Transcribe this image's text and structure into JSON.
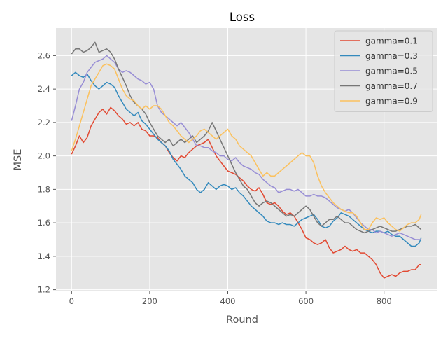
{
  "chart_data": {
    "type": "line",
    "title": "Loss",
    "xlabel": "Round",
    "ylabel": "MSE",
    "xlim": [
      -40,
      935
    ],
    "ylim": [
      1.19,
      2.765
    ],
    "xticks": [
      0,
      200,
      400,
      600,
      800
    ],
    "xtick_labels": [
      "0",
      "200",
      "400",
      "600",
      "800"
    ],
    "yticks": [
      1.2,
      1.4,
      1.6,
      1.8,
      2.0,
      2.2,
      2.4,
      2.6
    ],
    "ytick_labels": [
      "1.2",
      "1.4",
      "1.6",
      "1.8",
      "2.0",
      "2.2",
      "2.4",
      "2.6"
    ],
    "grid": true,
    "legend_position": "top-right",
    "style": "ggplot",
    "series": [
      {
        "name": "gamma=0.1",
        "color": "#E24A33",
        "x": [
          0,
          10,
          20,
          30,
          40,
          50,
          60,
          70,
          80,
          90,
          100,
          110,
          120,
          130,
          140,
          150,
          160,
          170,
          180,
          190,
          200,
          210,
          220,
          230,
          240,
          250,
          260,
          270,
          280,
          290,
          300,
          310,
          320,
          330,
          340,
          350,
          360,
          370,
          380,
          390,
          400,
          410,
          420,
          430,
          440,
          450,
          460,
          470,
          480,
          490,
          500,
          510,
          520,
          530,
          540,
          550,
          560,
          570,
          580,
          590,
          600,
          610,
          620,
          630,
          640,
          650,
          660,
          670,
          680,
          690,
          700,
          710,
          720,
          730,
          740,
          750,
          760,
          770,
          780,
          790,
          800,
          810,
          820,
          830,
          840,
          850,
          860,
          870,
          880,
          890,
          895
        ],
        "y": [
          2.01,
          2.06,
          2.12,
          2.08,
          2.11,
          2.18,
          2.22,
          2.26,
          2.28,
          2.25,
          2.29,
          2.27,
          2.24,
          2.22,
          2.19,
          2.2,
          2.18,
          2.2,
          2.16,
          2.15,
          2.12,
          2.12,
          2.11,
          2.08,
          2.06,
          2.02,
          1.99,
          1.97,
          2.0,
          1.99,
          2.02,
          2.04,
          2.06,
          2.07,
          2.08,
          2.1,
          2.05,
          2.0,
          1.97,
          1.94,
          1.91,
          1.9,
          1.89,
          1.87,
          1.85,
          1.82,
          1.8,
          1.79,
          1.81,
          1.77,
          1.72,
          1.71,
          1.72,
          1.7,
          1.67,
          1.65,
          1.66,
          1.64,
          1.6,
          1.56,
          1.51,
          1.5,
          1.48,
          1.47,
          1.48,
          1.5,
          1.45,
          1.42,
          1.43,
          1.44,
          1.46,
          1.44,
          1.43,
          1.44,
          1.42,
          1.42,
          1.4,
          1.38,
          1.35,
          1.3,
          1.27,
          1.28,
          1.29,
          1.28,
          1.3,
          1.31,
          1.31,
          1.32,
          1.32,
          1.35,
          1.35
        ]
      },
      {
        "name": "gamma=0.3",
        "color": "#348ABD",
        "x": [
          0,
          10,
          20,
          30,
          40,
          50,
          60,
          70,
          80,
          90,
          100,
          110,
          120,
          130,
          140,
          150,
          160,
          170,
          180,
          190,
          200,
          210,
          220,
          230,
          240,
          250,
          260,
          270,
          280,
          290,
          300,
          310,
          320,
          330,
          340,
          350,
          360,
          370,
          380,
          390,
          400,
          410,
          420,
          430,
          440,
          450,
          460,
          470,
          480,
          490,
          500,
          510,
          520,
          530,
          540,
          550,
          560,
          570,
          580,
          590,
          600,
          610,
          620,
          630,
          640,
          650,
          660,
          670,
          680,
          690,
          700,
          710,
          720,
          730,
          740,
          750,
          760,
          770,
          780,
          790,
          800,
          810,
          820,
          830,
          840,
          850,
          860,
          870,
          880,
          890,
          895
        ],
        "y": [
          2.48,
          2.5,
          2.48,
          2.47,
          2.49,
          2.45,
          2.42,
          2.4,
          2.42,
          2.44,
          2.43,
          2.41,
          2.36,
          2.32,
          2.28,
          2.26,
          2.24,
          2.26,
          2.21,
          2.19,
          2.16,
          2.13,
          2.1,
          2.08,
          2.06,
          2.03,
          1.98,
          1.95,
          1.92,
          1.88,
          1.86,
          1.84,
          1.8,
          1.78,
          1.8,
          1.84,
          1.82,
          1.8,
          1.82,
          1.83,
          1.82,
          1.8,
          1.81,
          1.78,
          1.76,
          1.73,
          1.7,
          1.68,
          1.66,
          1.64,
          1.61,
          1.6,
          1.6,
          1.59,
          1.6,
          1.59,
          1.59,
          1.58,
          1.6,
          1.62,
          1.63,
          1.64,
          1.65,
          1.62,
          1.58,
          1.57,
          1.58,
          1.61,
          1.63,
          1.66,
          1.65,
          1.64,
          1.62,
          1.6,
          1.58,
          1.56,
          1.55,
          1.54,
          1.55,
          1.55,
          1.54,
          1.55,
          1.53,
          1.52,
          1.52,
          1.5,
          1.48,
          1.46,
          1.46,
          1.48,
          1.51
        ]
      },
      {
        "name": "gamma=0.5",
        "color": "#988ED5",
        "x": [
          0,
          10,
          20,
          30,
          40,
          50,
          60,
          70,
          80,
          90,
          100,
          110,
          120,
          130,
          140,
          150,
          160,
          170,
          180,
          190,
          200,
          210,
          220,
          230,
          240,
          250,
          260,
          270,
          280,
          290,
          300,
          310,
          320,
          330,
          340,
          350,
          360,
          370,
          380,
          390,
          400,
          410,
          420,
          430,
          440,
          450,
          460,
          470,
          480,
          490,
          500,
          510,
          520,
          530,
          540,
          550,
          560,
          570,
          580,
          590,
          600,
          610,
          620,
          630,
          640,
          650,
          660,
          670,
          680,
          690,
          700,
          710,
          720,
          730,
          740,
          750,
          760,
          770,
          780,
          790,
          800,
          810,
          820,
          830,
          840,
          850,
          860,
          870,
          880,
          890,
          895
        ],
        "y": [
          2.21,
          2.3,
          2.4,
          2.44,
          2.5,
          2.53,
          2.56,
          2.57,
          2.58,
          2.6,
          2.58,
          2.56,
          2.52,
          2.5,
          2.51,
          2.5,
          2.48,
          2.46,
          2.45,
          2.43,
          2.44,
          2.4,
          2.3,
          2.26,
          2.24,
          2.22,
          2.2,
          2.18,
          2.2,
          2.17,
          2.14,
          2.1,
          2.06,
          2.06,
          2.05,
          2.05,
          2.03,
          2.02,
          2.0,
          2.0,
          1.98,
          1.97,
          1.99,
          1.96,
          1.94,
          1.93,
          1.92,
          1.9,
          1.89,
          1.86,
          1.84,
          1.82,
          1.81,
          1.78,
          1.79,
          1.8,
          1.8,
          1.79,
          1.8,
          1.78,
          1.76,
          1.76,
          1.77,
          1.76,
          1.76,
          1.75,
          1.73,
          1.71,
          1.69,
          1.68,
          1.67,
          1.68,
          1.66,
          1.63,
          1.6,
          1.58,
          1.56,
          1.56,
          1.54,
          1.55,
          1.54,
          1.53,
          1.52,
          1.53,
          1.54,
          1.53,
          1.52,
          1.51,
          1.5,
          1.5,
          1.5
        ]
      },
      {
        "name": "gamma=0.7",
        "color": "#777777",
        "x": [
          0,
          10,
          20,
          30,
          40,
          50,
          60,
          70,
          80,
          90,
          100,
          110,
          120,
          130,
          140,
          150,
          160,
          170,
          180,
          190,
          200,
          210,
          220,
          230,
          240,
          250,
          260,
          270,
          280,
          290,
          300,
          310,
          320,
          330,
          340,
          350,
          360,
          370,
          380,
          390,
          400,
          410,
          420,
          430,
          440,
          450,
          460,
          470,
          480,
          490,
          500,
          510,
          520,
          530,
          540,
          550,
          560,
          570,
          580,
          590,
          600,
          610,
          620,
          630,
          640,
          650,
          660,
          670,
          680,
          690,
          700,
          710,
          720,
          730,
          740,
          750,
          760,
          770,
          780,
          790,
          800,
          810,
          820,
          830,
          840,
          850,
          860,
          870,
          880,
          890,
          895
        ],
        "y": [
          2.61,
          2.64,
          2.64,
          2.62,
          2.63,
          2.65,
          2.68,
          2.62,
          2.63,
          2.64,
          2.62,
          2.58,
          2.52,
          2.47,
          2.42,
          2.36,
          2.32,
          2.3,
          2.28,
          2.25,
          2.2,
          2.16,
          2.12,
          2.1,
          2.08,
          2.1,
          2.06,
          2.08,
          2.1,
          2.08,
          2.1,
          2.12,
          2.08,
          2.1,
          2.12,
          2.15,
          2.2,
          2.15,
          2.1,
          2.05,
          2.0,
          1.95,
          1.9,
          1.86,
          1.82,
          1.8,
          1.76,
          1.72,
          1.7,
          1.72,
          1.73,
          1.72,
          1.7,
          1.68,
          1.66,
          1.64,
          1.65,
          1.64,
          1.66,
          1.68,
          1.7,
          1.68,
          1.64,
          1.6,
          1.58,
          1.6,
          1.62,
          1.62,
          1.64,
          1.62,
          1.6,
          1.6,
          1.58,
          1.56,
          1.55,
          1.54,
          1.55,
          1.56,
          1.57,
          1.58,
          1.57,
          1.56,
          1.55,
          1.55,
          1.56,
          1.57,
          1.58,
          1.58,
          1.59,
          1.57,
          1.56
        ]
      },
      {
        "name": "gamma=0.9",
        "color": "#FBC15E",
        "x": [
          0,
          10,
          20,
          30,
          40,
          50,
          60,
          70,
          80,
          90,
          100,
          110,
          120,
          130,
          140,
          150,
          160,
          170,
          180,
          190,
          200,
          210,
          220,
          230,
          240,
          250,
          260,
          270,
          280,
          290,
          300,
          310,
          320,
          330,
          340,
          350,
          360,
          370,
          380,
          390,
          400,
          410,
          420,
          430,
          440,
          450,
          460,
          470,
          480,
          490,
          500,
          510,
          520,
          530,
          540,
          550,
          560,
          570,
          580,
          590,
          600,
          610,
          620,
          630,
          640,
          650,
          660,
          670,
          680,
          690,
          700,
          710,
          720,
          730,
          740,
          750,
          760,
          770,
          780,
          790,
          800,
          810,
          820,
          830,
          840,
          850,
          860,
          870,
          880,
          890,
          895
        ],
        "y": [
          2.03,
          2.1,
          2.18,
          2.26,
          2.34,
          2.42,
          2.46,
          2.5,
          2.54,
          2.55,
          2.54,
          2.52,
          2.46,
          2.4,
          2.36,
          2.34,
          2.33,
          2.3,
          2.28,
          2.3,
          2.28,
          2.3,
          2.3,
          2.28,
          2.24,
          2.2,
          2.18,
          2.15,
          2.12,
          2.1,
          2.08,
          2.1,
          2.12,
          2.15,
          2.16,
          2.14,
          2.12,
          2.1,
          2.12,
          2.14,
          2.16,
          2.12,
          2.1,
          2.06,
          2.04,
          2.02,
          2.0,
          1.96,
          1.92,
          1.88,
          1.9,
          1.88,
          1.88,
          1.9,
          1.92,
          1.94,
          1.96,
          1.98,
          2.0,
          2.02,
          2.0,
          2.0,
          1.96,
          1.88,
          1.82,
          1.78,
          1.75,
          1.72,
          1.7,
          1.68,
          1.67,
          1.66,
          1.66,
          1.64,
          1.6,
          1.56,
          1.56,
          1.6,
          1.63,
          1.62,
          1.63,
          1.6,
          1.58,
          1.56,
          1.55,
          1.57,
          1.59,
          1.6,
          1.6,
          1.62,
          1.65
        ]
      }
    ]
  }
}
